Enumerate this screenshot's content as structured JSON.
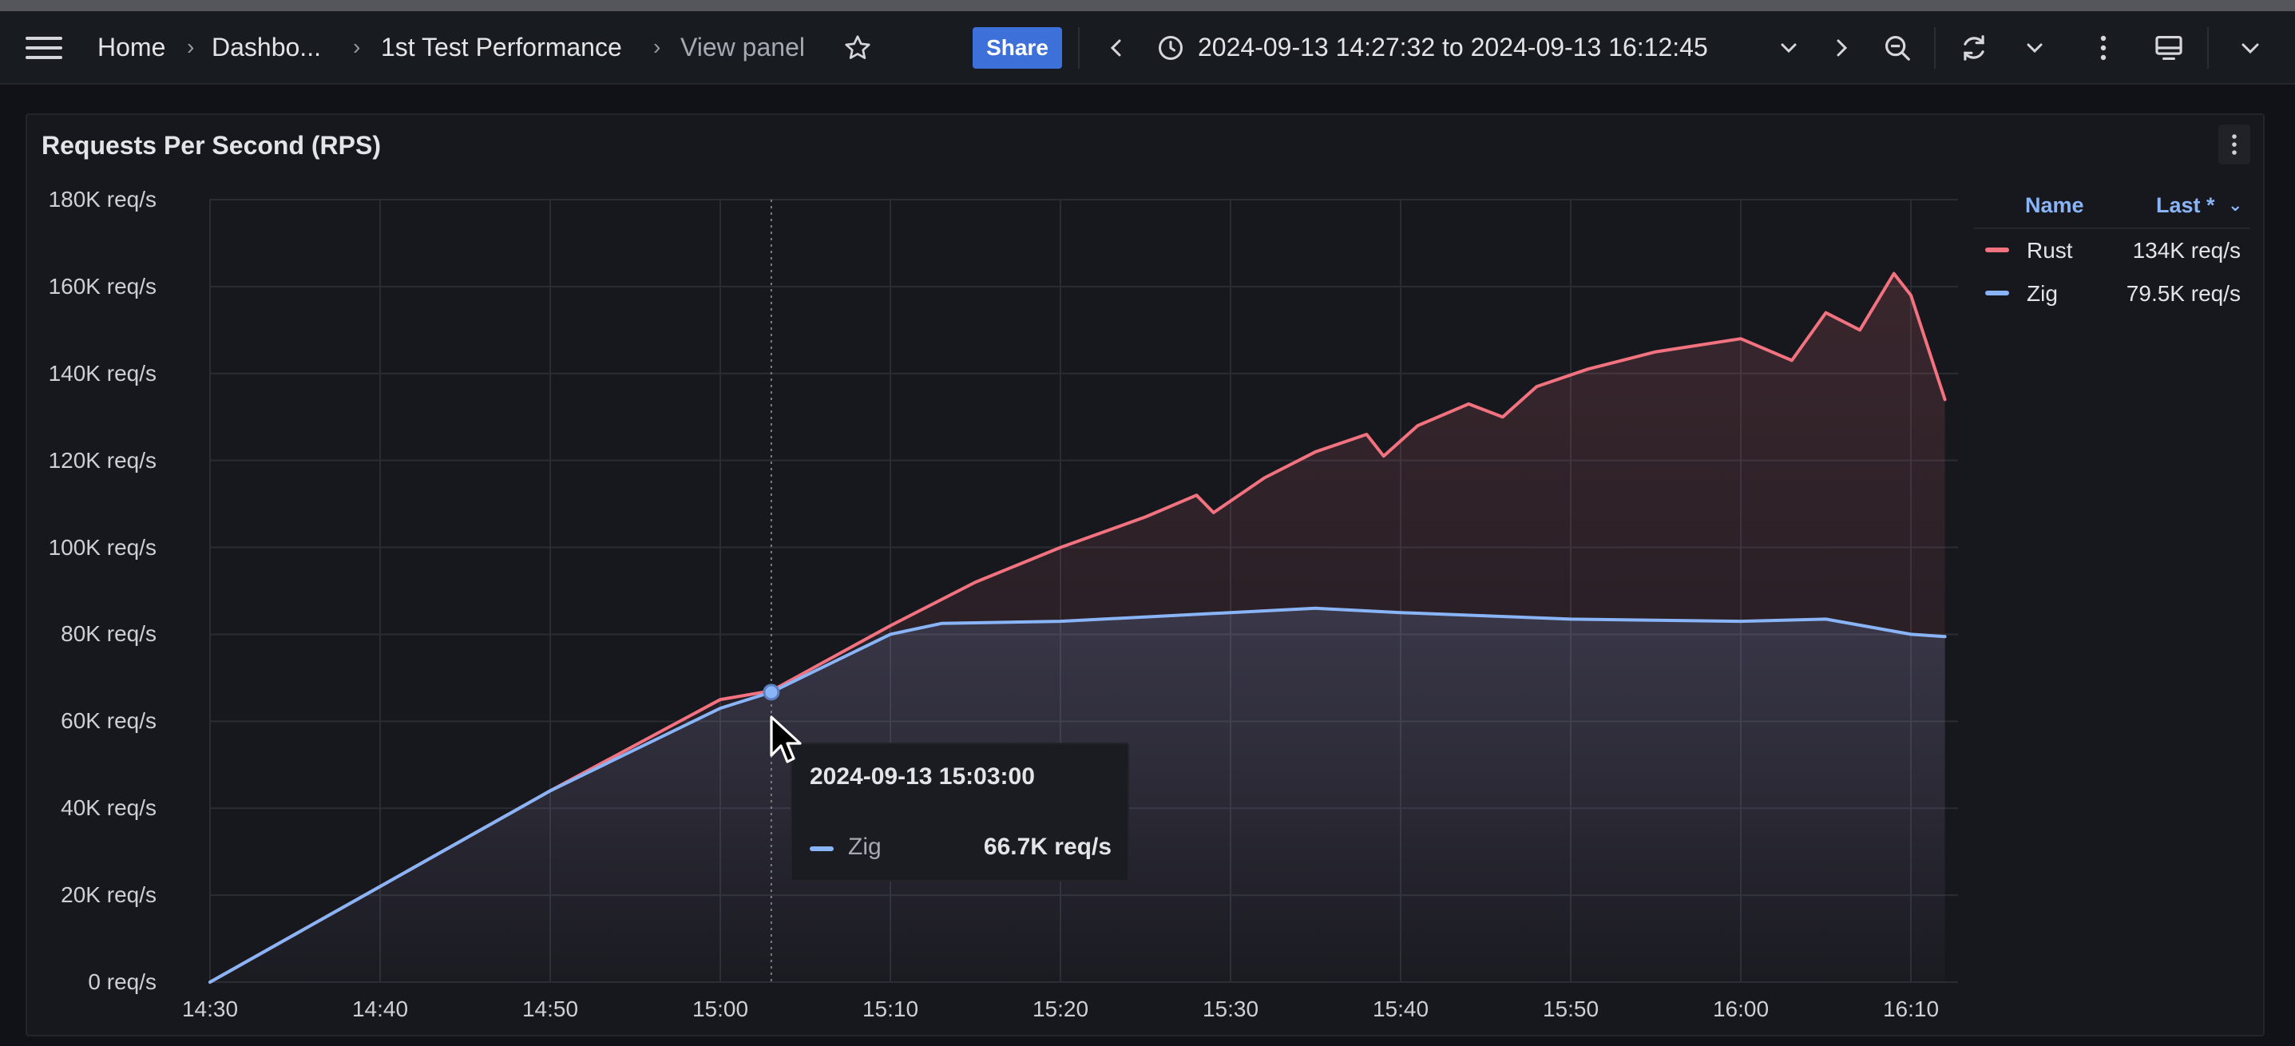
{
  "toolbar": {
    "breadcrumb": [
      "Home",
      "Dashbo...",
      "1st Test Performance",
      "View panel"
    ],
    "share_label": "Share",
    "time_range": "2024-09-13 14:27:32 to 2024-09-13 16:12:45",
    "icons": [
      "menu-icon",
      "star-icon",
      "chevron-left-icon",
      "clock-icon",
      "chevron-down-icon",
      "chevron-right-icon",
      "zoom-out-icon",
      "refresh-icon",
      "kebab-icon",
      "tv-icon"
    ]
  },
  "panel": {
    "title": "Requests Per Second (RPS)"
  },
  "legend": {
    "header_name": "Name",
    "header_value": "Last *",
    "rows": [
      {
        "name": "Rust",
        "value": "134K req/s",
        "color": "#f2727f"
      },
      {
        "name": "Zig",
        "value": "79.5K req/s",
        "color": "#8ab4f8"
      }
    ]
  },
  "tooltip": {
    "time": "2024-09-13 15:03:00",
    "series": "Zig",
    "value": "66.7K req/s"
  },
  "chart_data": {
    "type": "line",
    "title": "Requests Per Second (RPS)",
    "ylabel": "",
    "xlabel": "",
    "ylim": [
      0,
      180000
    ],
    "y_ticks": [
      "0 req/s",
      "20K req/s",
      "40K req/s",
      "60K req/s",
      "80K req/s",
      "100K req/s",
      "120K req/s",
      "140K req/s",
      "160K req/s",
      "180K req/s"
    ],
    "x_ticks": [
      "14:30",
      "14:40",
      "14:50",
      "15:00",
      "15:10",
      "15:20",
      "15:30",
      "15:40",
      "15:50",
      "16:00",
      "16:10"
    ],
    "grid": true,
    "legend": "right",
    "series": [
      {
        "name": "Rust",
        "color": "#f2727f",
        "points": [
          [
            "14:30",
            0
          ],
          [
            "14:40",
            22000
          ],
          [
            "14:50",
            44000
          ],
          [
            "15:00",
            65000
          ],
          [
            "15:03",
            67000
          ],
          [
            "15:10",
            82000
          ],
          [
            "15:15",
            92000
          ],
          [
            "15:20",
            100000
          ],
          [
            "15:25",
            107000
          ],
          [
            "15:28",
            112000
          ],
          [
            "15:29",
            108000
          ],
          [
            "15:32",
            116000
          ],
          [
            "15:35",
            122000
          ],
          [
            "15:38",
            126000
          ],
          [
            "15:39",
            121000
          ],
          [
            "15:41",
            128000
          ],
          [
            "15:44",
            133000
          ],
          [
            "15:46",
            130000
          ],
          [
            "15:48",
            137000
          ],
          [
            "15:51",
            141000
          ],
          [
            "15:55",
            145000
          ],
          [
            "16:00",
            148000
          ],
          [
            "16:03",
            143000
          ],
          [
            "16:05",
            154000
          ],
          [
            "16:07",
            150000
          ],
          [
            "16:09",
            163000
          ],
          [
            "16:10",
            158000
          ],
          [
            "16:12",
            134000
          ]
        ]
      },
      {
        "name": "Zig",
        "color": "#8ab4f8",
        "points": [
          [
            "14:30",
            0
          ],
          [
            "14:40",
            22000
          ],
          [
            "14:50",
            44000
          ],
          [
            "15:00",
            63000
          ],
          [
            "15:03",
            66700
          ],
          [
            "15:10",
            80000
          ],
          [
            "15:13",
            82500
          ],
          [
            "15:20",
            83000
          ],
          [
            "15:30",
            85000
          ],
          [
            "15:35",
            86000
          ],
          [
            "15:40",
            85000
          ],
          [
            "15:50",
            83500
          ],
          [
            "16:00",
            83000
          ],
          [
            "16:05",
            83500
          ],
          [
            "16:10",
            80000
          ],
          [
            "16:12",
            79500
          ]
        ]
      }
    ]
  }
}
